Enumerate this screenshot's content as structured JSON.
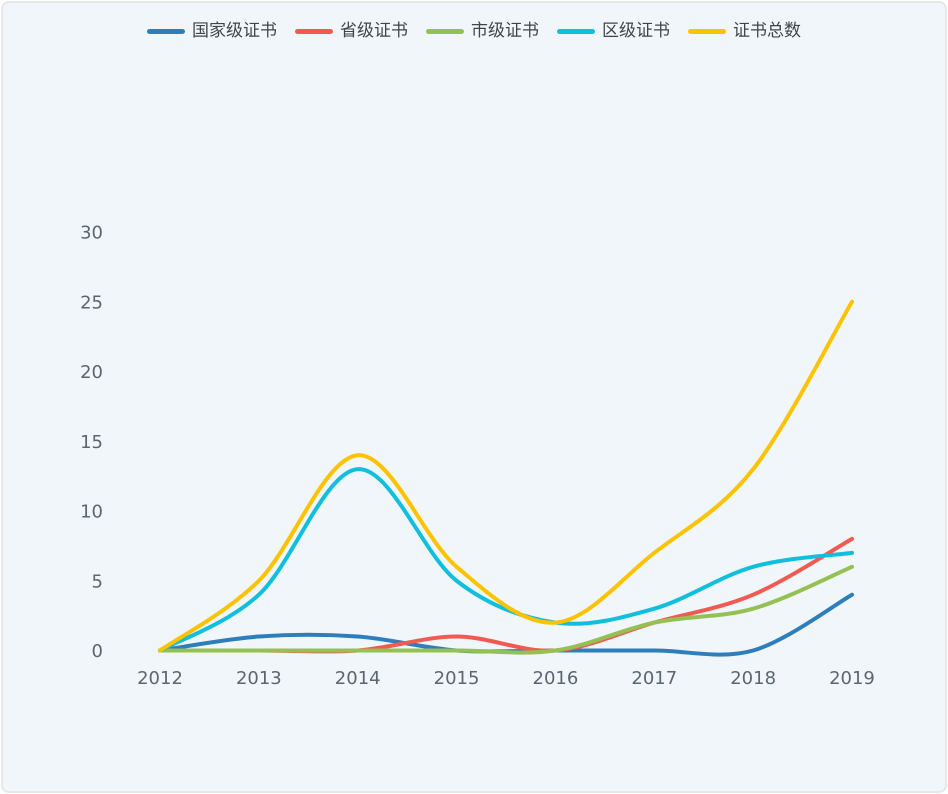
{
  "chart_data": {
    "type": "line",
    "title": "",
    "xlabel": "",
    "ylabel": "",
    "categories": [
      "2012",
      "2013",
      "2014",
      "2015",
      "2016",
      "2017",
      "2018",
      "2019"
    ],
    "series": [
      {
        "name": "国家级证书",
        "color": "#2e7ebc",
        "values": [
          0,
          1,
          1,
          0,
          0,
          0,
          0,
          4
        ]
      },
      {
        "name": "省级证书",
        "color": "#f05a51",
        "values": [
          0,
          0,
          0,
          1,
          0,
          2,
          4,
          8
        ]
      },
      {
        "name": "市级证书",
        "color": "#94c152",
        "values": [
          0,
          0,
          0,
          0,
          0,
          2,
          3,
          6
        ]
      },
      {
        "name": "区级证书",
        "color": "#0fbfdc",
        "values": [
          0,
          4,
          13,
          5,
          2,
          3,
          6,
          7
        ]
      },
      {
        "name": "证书总数",
        "color": "#fdc300",
        "values": [
          0,
          5,
          14,
          6,
          2,
          7,
          13,
          25
        ]
      }
    ],
    "ylim": [
      0,
      30
    ],
    "yticks": [
      0,
      5,
      10,
      15,
      20,
      25,
      30
    ],
    "grid": false,
    "smooth": true,
    "legend_position": "top",
    "background": "#f1f6fa"
  }
}
